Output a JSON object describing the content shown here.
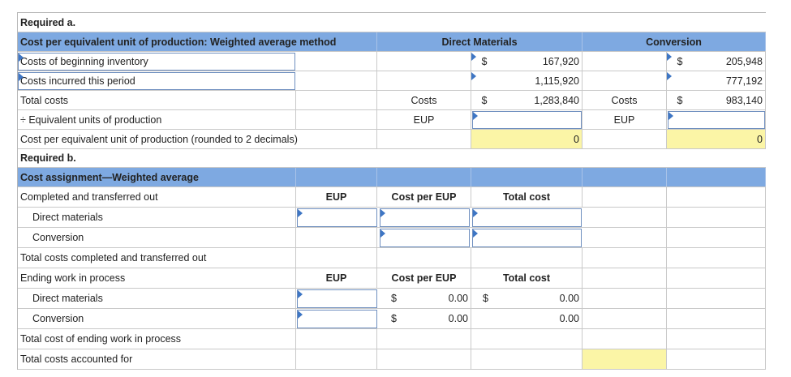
{
  "req_a": {
    "title": "Required a.",
    "header_title": "Cost per equivalent unit of production: Weighted average method",
    "col_direct_materials": "Direct Materials",
    "col_conversion": "Conversion",
    "rows": {
      "beginning": "Costs of beginning inventory",
      "incurred": "Costs incurred this period",
      "total": "Total costs",
      "eup": "÷ Equivalent units of production",
      "cost_per_eup": "Cost per equivalent unit of production (rounded to 2 decimals)"
    },
    "costs_label": "Costs",
    "eup_label": "EUP",
    "dollar": "$",
    "dm": {
      "beginning": "167,920",
      "incurred": "1,115,920",
      "total": "1,283,840",
      "eup": "",
      "cost_per_eup": "0"
    },
    "conv": {
      "beginning": "205,948",
      "incurred": "777,192",
      "total": "983,140",
      "eup": "",
      "cost_per_eup": "0"
    }
  },
  "req_b": {
    "title": "Required b.",
    "header_title": "Cost assignment—Weighted average",
    "col_eup": "EUP",
    "col_cost_per_eup": "Cost per EUP",
    "col_total_cost": "Total cost",
    "rows": {
      "completed": "Completed and transferred out",
      "dm": "Direct materials",
      "conv": "Conversion",
      "total_completed": "Total costs completed and transferred out",
      "ending": "Ending work in process",
      "ending_dm": "Direct materials",
      "ending_conv": "Conversion",
      "total_ending": "Total cost of ending work in process",
      "accounted": "Total costs accounted for"
    },
    "dollar": "$",
    "ending_dm_cost_per_eup": "0.00",
    "ending_conv_cost_per_eup": "0.00",
    "ending_dm_total": "0.00",
    "ending_conv_total": "0.00"
  }
}
